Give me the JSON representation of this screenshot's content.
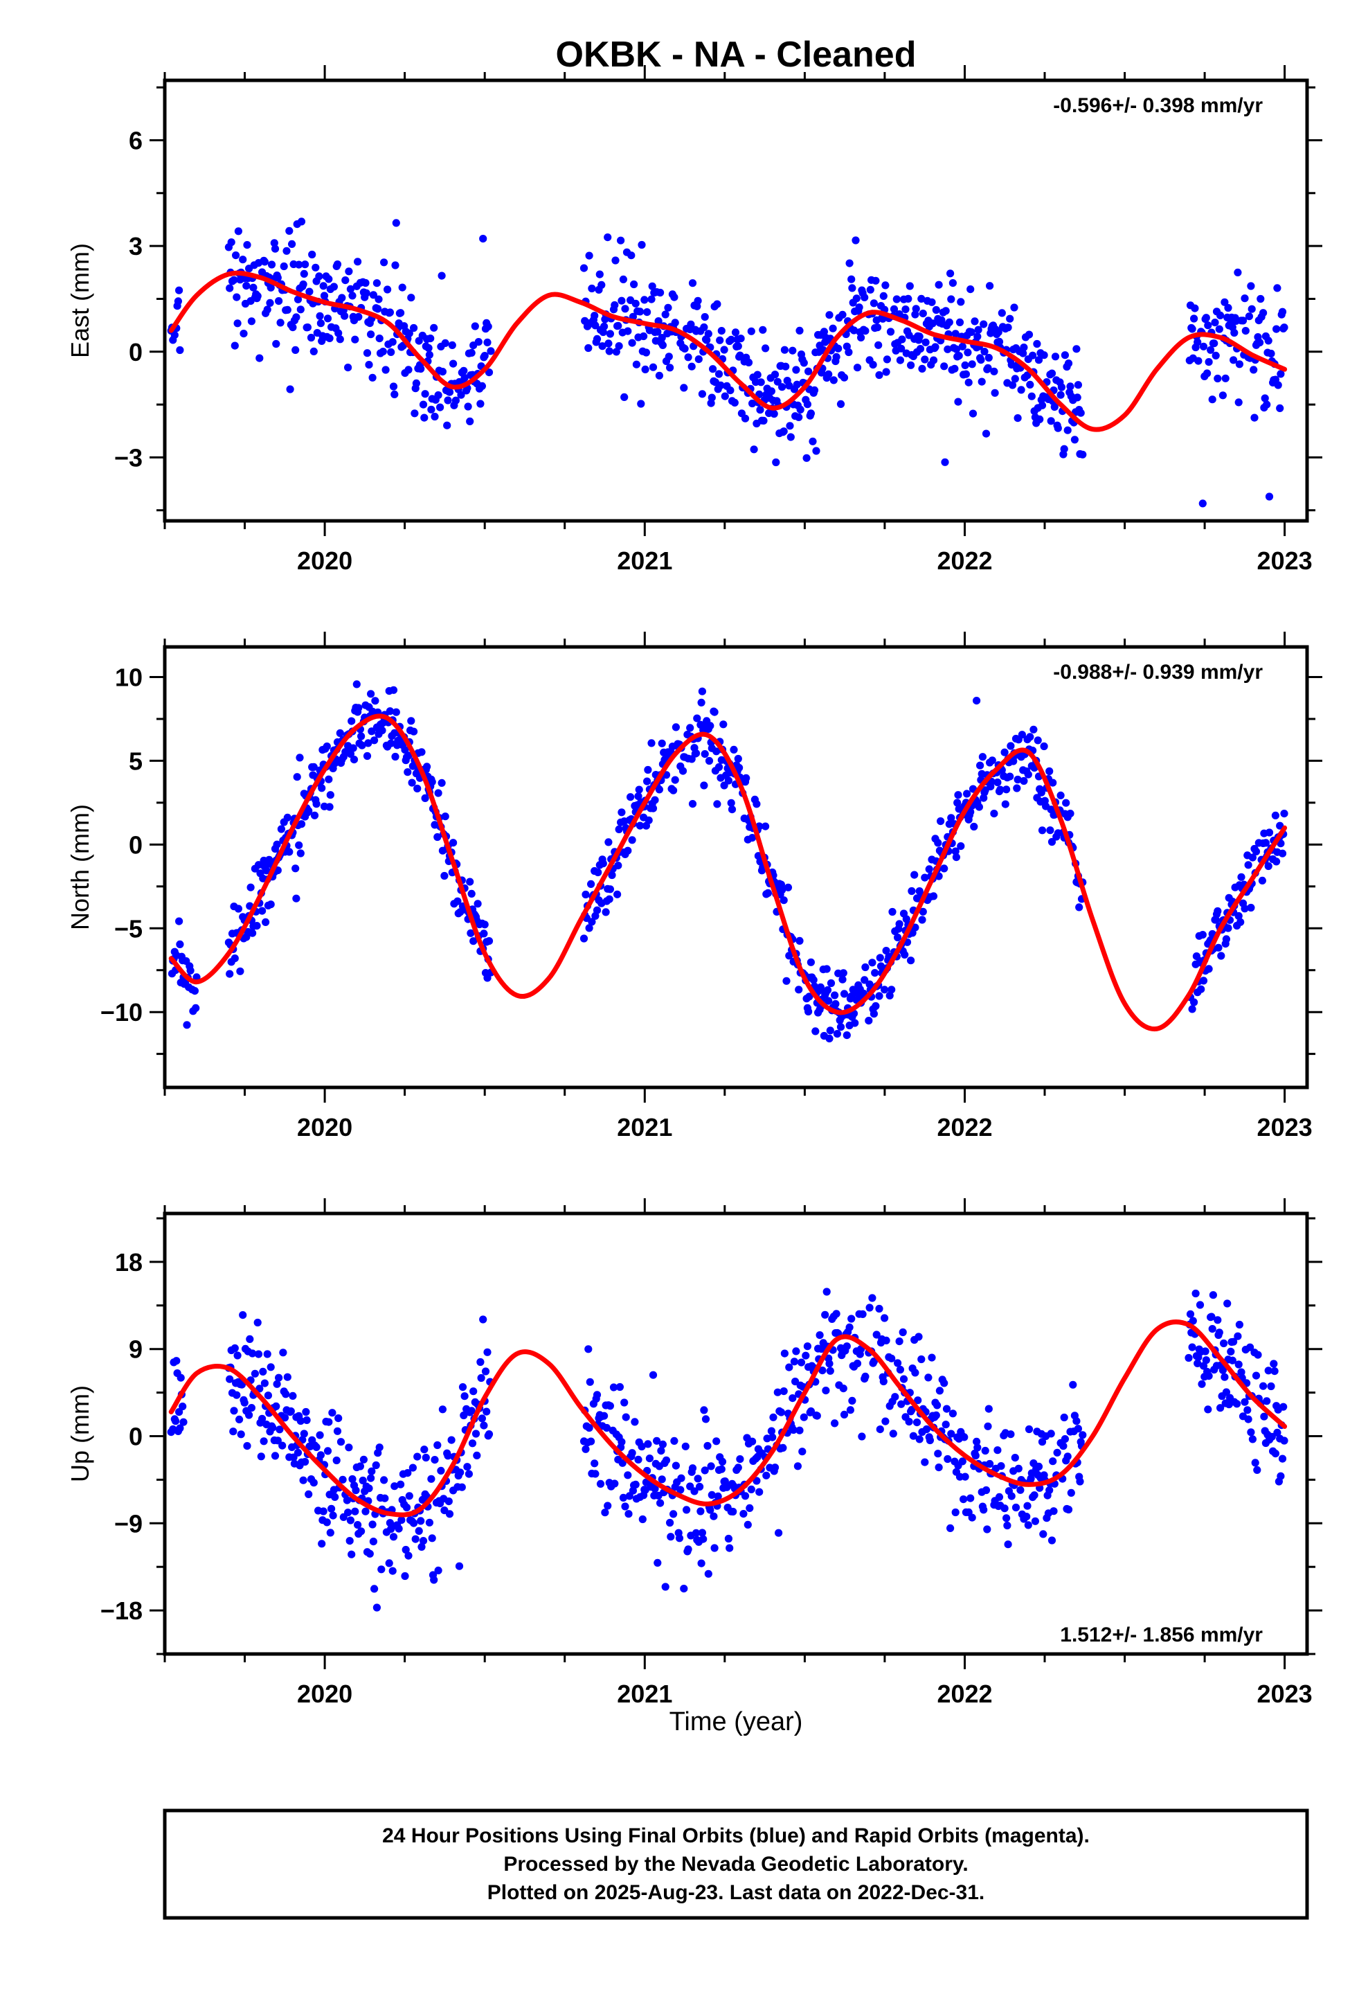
{
  "title": "OKBK  - NA - Cleaned",
  "xlabel": "Time (year)",
  "footer": [
    "24 Hour Positions Using Final Orbits (blue) and Rapid Orbits (magenta).",
    "Processed by the Nevada Geodetic Laboratory.",
    "Plotted on 2025-Aug-23. Last data on 2022-Dec-31."
  ],
  "colors": {
    "points": "#0000ff",
    "model": "#ff0000",
    "frame": "#000000"
  },
  "chart_data": [
    {
      "type": "scatter",
      "ylabel": "East (mm)",
      "rate": "-0.596+/- 0.398 mm/yr",
      "rate_position": "top-right",
      "xlim": [
        2019.5,
        2023.07
      ],
      "ylim": [
        -4.8,
        7.7
      ],
      "xticks": [
        2020,
        2021,
        2022,
        2023
      ],
      "xtick_labels": [
        "2020",
        "2021",
        "2022",
        "2023"
      ],
      "yticks": [
        -3,
        0,
        3,
        6
      ],
      "ytick_labels": [
        "−3",
        "0",
        "3",
        "6"
      ],
      "model": {
        "x": [
          2019.52,
          2019.6,
          2019.7,
          2019.8,
          2019.9,
          2020.0,
          2020.1,
          2020.2,
          2020.3,
          2020.4,
          2020.5,
          2020.6,
          2020.7,
          2020.8,
          2020.9,
          2021.0,
          2021.1,
          2021.2,
          2021.3,
          2021.4,
          2021.5,
          2021.6,
          2021.7,
          2021.8,
          2021.9,
          2022.0,
          2022.1,
          2022.2,
          2022.3,
          2022.4,
          2022.5,
          2022.6,
          2022.7,
          2022.8,
          2022.9,
          2023.0
        ],
        "y": [
          0.6,
          1.6,
          2.2,
          2.1,
          1.7,
          1.4,
          1.2,
          0.8,
          -0.2,
          -1.0,
          -0.5,
          0.8,
          1.6,
          1.4,
          1.0,
          0.8,
          0.6,
          0.0,
          -0.9,
          -1.6,
          -1.0,
          0.4,
          1.1,
          0.9,
          0.5,
          0.3,
          0.1,
          -0.5,
          -1.5,
          -2.2,
          -1.8,
          -0.5,
          0.4,
          0.4,
          -0.1,
          -0.5
        ]
      },
      "points": {
        "segments": [
          [
            2019.52,
            2019.55
          ],
          [
            2019.7,
            2020.52
          ],
          [
            2020.81,
            2021.69
          ],
          [
            2021.7,
            2022.37
          ],
          [
            2022.7,
            2023.0
          ]
        ],
        "noise": 1.0
      }
    },
    {
      "type": "scatter",
      "ylabel": "North (mm)",
      "rate": "-0.988+/- 0.939 mm/yr",
      "rate_position": "top-right",
      "xlim": [
        2019.5,
        2023.07
      ],
      "ylim": [
        -14.5,
        11.8
      ],
      "xticks": [
        2020,
        2021,
        2022,
        2023
      ],
      "xtick_labels": [
        "2020",
        "2021",
        "2022",
        "2023"
      ],
      "yticks": [
        -10,
        -5,
        0,
        5,
        10
      ],
      "ytick_labels": [
        "−10",
        "−5",
        "0",
        "5",
        "10"
      ],
      "model": {
        "x": [
          2019.52,
          2019.6,
          2019.7,
          2019.8,
          2019.9,
          2020.0,
          2020.1,
          2020.2,
          2020.3,
          2020.4,
          2020.5,
          2020.6,
          2020.7,
          2020.8,
          2020.9,
          2021.0,
          2021.1,
          2021.2,
          2021.3,
          2021.4,
          2021.5,
          2021.6,
          2021.7,
          2021.8,
          2021.9,
          2022.0,
          2022.1,
          2022.2,
          2022.3,
          2022.4,
          2022.5,
          2022.6,
          2022.7,
          2022.8,
          2022.9,
          2023.0
        ],
        "y": [
          -6.8,
          -8.2,
          -6.5,
          -3.0,
          1.0,
          4.5,
          7.0,
          7.5,
          4.5,
          -1.0,
          -6.5,
          -9.0,
          -8.0,
          -4.5,
          -1.0,
          2.5,
          5.5,
          6.5,
          3.5,
          -2.5,
          -8.0,
          -10.0,
          -9.0,
          -6.0,
          -2.0,
          2.0,
          4.5,
          5.5,
          1.5,
          -4.5,
          -9.5,
          -11.0,
          -9.0,
          -5.0,
          -2.0,
          1.0
        ]
      },
      "points": {
        "segments": [
          [
            2019.52,
            2019.6
          ],
          [
            2019.7,
            2020.52
          ],
          [
            2020.81,
            2021.69
          ],
          [
            2021.7,
            2022.37
          ],
          [
            2022.7,
            2023.0
          ]
        ],
        "noise": 1.3
      }
    },
    {
      "type": "scatter",
      "ylabel": "Up (mm)",
      "rate": "1.512+/- 1.856 mm/yr",
      "rate_position": "bottom-right",
      "xlim": [
        2019.5,
        2023.07
      ],
      "ylim": [
        -22.5,
        23.0
      ],
      "xticks": [
        2020,
        2021,
        2022,
        2023
      ],
      "xtick_labels": [
        "2020",
        "2021",
        "2022",
        "2023"
      ],
      "yticks": [
        -18,
        -9,
        0,
        9,
        18
      ],
      "ytick_labels": [
        "−18",
        "−9",
        "0",
        "9",
        "18"
      ],
      "model": {
        "x": [
          2019.52,
          2019.6,
          2019.7,
          2019.8,
          2019.9,
          2020.0,
          2020.1,
          2020.2,
          2020.3,
          2020.4,
          2020.5,
          2020.6,
          2020.7,
          2020.8,
          2020.9,
          2021.0,
          2021.1,
          2021.2,
          2021.3,
          2021.4,
          2021.5,
          2021.6,
          2021.7,
          2021.8,
          2021.9,
          2022.0,
          2022.1,
          2022.2,
          2022.3,
          2022.4,
          2022.5,
          2022.6,
          2022.7,
          2022.8,
          2022.9,
          2023.0
        ],
        "y": [
          2.5,
          6.5,
          7.0,
          4.0,
          0.0,
          -3.5,
          -6.5,
          -8.0,
          -7.5,
          -3.0,
          4.0,
          8.5,
          7.5,
          3.0,
          -1.0,
          -4.0,
          -6.0,
          -7.0,
          -5.5,
          -1.5,
          4.5,
          10.0,
          9.0,
          5.0,
          1.0,
          -2.0,
          -4.0,
          -5.0,
          -4.0,
          0.0,
          6.0,
          11.0,
          11.5,
          8.0,
          4.0,
          1.0
        ]
      },
      "points": {
        "segments": [
          [
            2019.52,
            2019.56
          ],
          [
            2019.7,
            2020.52
          ],
          [
            2020.81,
            2021.69
          ],
          [
            2021.7,
            2022.37
          ],
          [
            2022.7,
            2023.0
          ]
        ],
        "noise": 4.2
      }
    }
  ]
}
